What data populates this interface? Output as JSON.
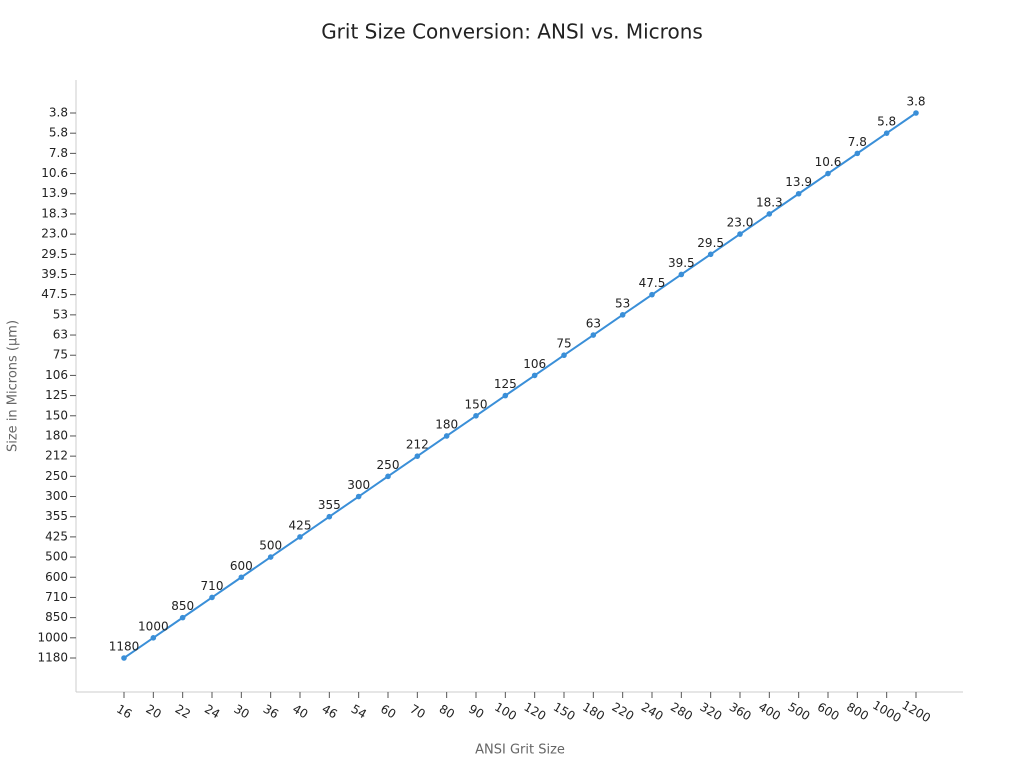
{
  "chart_data": {
    "type": "line",
    "title": "Grit Size Conversion: ANSI vs. Microns",
    "x_label": "ANSI Grit Size",
    "y_label": "Size in Microns (μm)",
    "categories": [
      "16",
      "20",
      "22",
      "24",
      "30",
      "36",
      "40",
      "46",
      "54",
      "60",
      "70",
      "80",
      "90",
      "100",
      "120",
      "150",
      "180",
      "220",
      "240",
      "280",
      "320",
      "360",
      "400",
      "500",
      "600",
      "800",
      "1000",
      "1200"
    ],
    "y_categories": [
      "3.8",
      "5.8",
      "7.8",
      "10.6",
      "13.9",
      "18.3",
      "23.0",
      "29.5",
      "39.5",
      "47.5",
      "53",
      "63",
      "75",
      "106",
      "125",
      "150",
      "180",
      "212",
      "250",
      "300",
      "355",
      "425",
      "500",
      "600",
      "710",
      "850",
      "1000",
      "1180"
    ],
    "values": [
      1180,
      1000,
      850,
      710,
      600,
      500,
      425,
      355,
      300,
      250,
      212,
      180,
      150,
      125,
      106,
      75,
      63,
      53,
      47.5,
      39.5,
      29.5,
      23,
      18.3,
      13.9,
      10.6,
      7.8,
      5.8,
      3.8
    ],
    "value_labels": [
      "1180",
      "1000",
      "850",
      "710",
      "600",
      "500",
      "425",
      "355",
      "300",
      "250",
      "212",
      "180",
      "150",
      "125",
      "106",
      "75",
      "63",
      "53",
      "47.5",
      "39.5",
      "29.5",
      "23.0",
      "18.3",
      "13.9",
      "10.6",
      "7.8",
      "5.8",
      "3.8"
    ],
    "color": "#3a8fd8"
  }
}
